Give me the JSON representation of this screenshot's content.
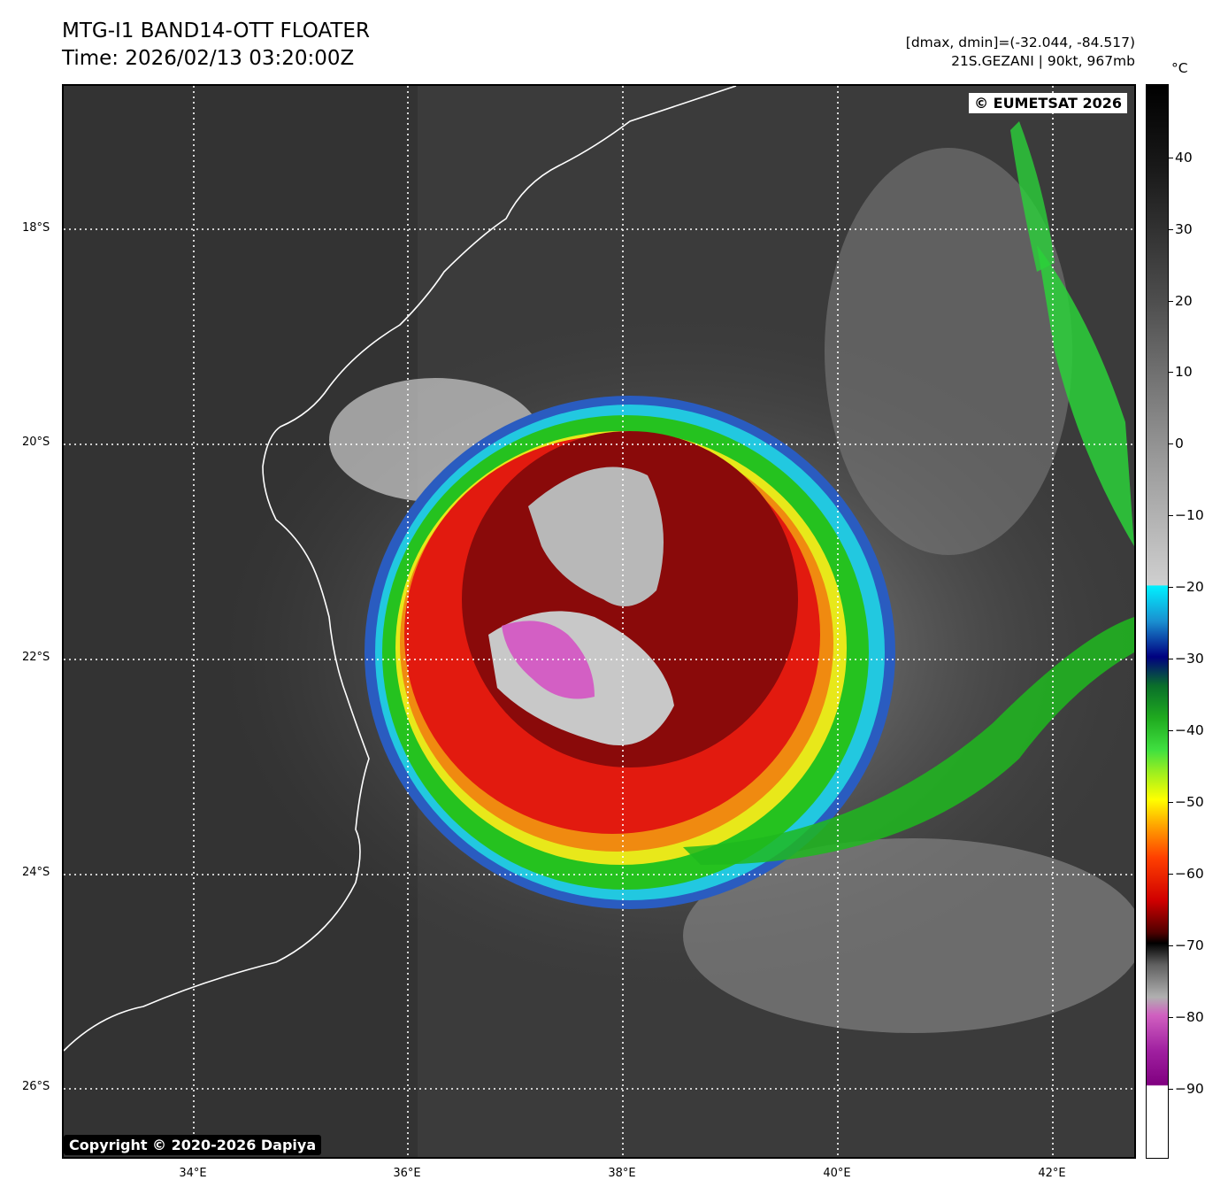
{
  "header": {
    "title": "MTG-I1 BAND14-OTT FLOATER",
    "time": "Time: 2026/02/13 03:20:00Z",
    "dminmax": "[dmax, dmin]=(-32.044, -84.517)",
    "storm": "21S.GEZANI | 90kt, 967mb"
  },
  "map": {
    "copyright_eumetsat": "© EUMETSAT 2026",
    "copyright_dapiya": "Copyright © 2020-2026 Dapiya",
    "latitudes": [
      "18°S",
      "20°S",
      "22°S",
      "24°S",
      "26°S"
    ],
    "longitudes": [
      "34°E",
      "36°E",
      "38°E",
      "40°E",
      "42°E"
    ],
    "gridline_style": "dotted white",
    "coastline_color": "#ffffff"
  },
  "colorbar": {
    "unit": "°C",
    "ticks": [
      "40",
      "30",
      "20",
      "10",
      "0",
      "−10",
      "−20",
      "−30",
      "−40",
      "−50",
      "−60",
      "−70",
      "−80",
      "−90"
    ],
    "range": [
      -100,
      50
    ]
  }
}
